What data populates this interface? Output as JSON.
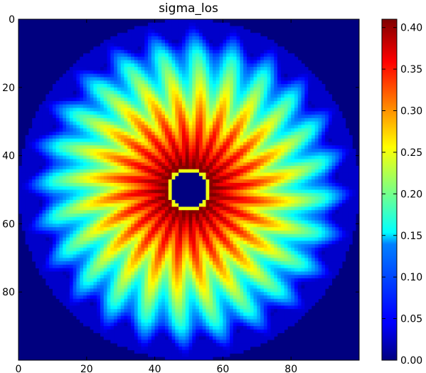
{
  "chart_data": {
    "type": "heatmap",
    "title": "sigma_los",
    "xlabel": "",
    "ylabel": "",
    "x_range": [
      0,
      100
    ],
    "y_range": [
      0,
      100
    ],
    "y_inverted": true,
    "x_ticks": [
      "0",
      "20",
      "40",
      "60",
      "80"
    ],
    "y_ticks": [
      "0",
      "20",
      "40",
      "60",
      "80"
    ],
    "colormap": "jet",
    "colorbar": {
      "range": [
        0.0,
        0.41
      ],
      "ticks": [
        "0.00",
        "0.05",
        "0.10",
        "0.15",
        "0.20",
        "0.25",
        "0.30",
        "0.35",
        "0.40"
      ]
    },
    "description_values": {
      "center": [
        50,
        50
      ],
      "inner_hole_radius": 6.5,
      "peak_value": 0.41,
      "outer_radius": 50,
      "petal_count": 24
    }
  },
  "colors": {
    "jet": [
      "#00007f",
      "#0000ff",
      "#007fff",
      "#00ffff",
      "#7fff7f",
      "#ffff00",
      "#ff7f00",
      "#ff0000",
      "#7f0000"
    ]
  }
}
